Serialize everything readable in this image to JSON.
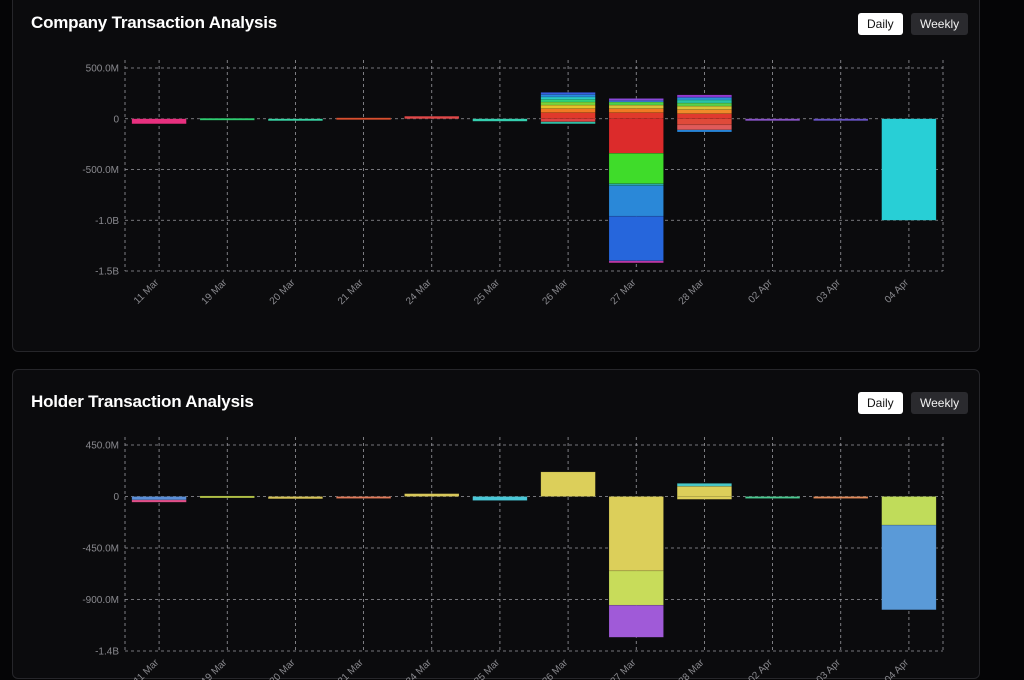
{
  "panels": [
    {
      "title": "Company Transaction Analysis",
      "buttons": {
        "daily": "Daily",
        "weekly": "Weekly",
        "active": "daily"
      }
    },
    {
      "title": "Holder Transaction Analysis",
      "buttons": {
        "daily": "Daily",
        "weekly": "Weekly",
        "active": "daily"
      }
    }
  ],
  "chart_data": [
    {
      "type": "bar",
      "stacked": true,
      "title": "Company Transaction Analysis",
      "categories": [
        "11 Mar",
        "19 Mar",
        "20 Mar",
        "21 Mar",
        "24 Mar",
        "25 Mar",
        "26 Mar",
        "27 Mar",
        "28 Mar",
        "02 Apr",
        "03 Apr",
        "04 Apr"
      ],
      "ylim": [
        -1500000000,
        500000000
      ],
      "yticks": [
        500000000,
        0,
        -500000000,
        -1000000000,
        -1500000000
      ],
      "ytick_labels": [
        "500.0M",
        "0",
        "-500.0M",
        "-1.0B",
        "-1.5B"
      ],
      "grid": true,
      "bars": [
        [
          {
            "v": -50000000,
            "c": "#e8307f"
          }
        ],
        [
          {
            "v": 5000000,
            "c": "#2ecc71"
          }
        ],
        [
          {
            "v": -20000000,
            "c": "#3ad6a6"
          }
        ],
        [
          {
            "v": 10000000,
            "c": "#d9502f"
          }
        ],
        [
          {
            "v": 25000000,
            "c": "#e04848"
          }
        ],
        [
          {
            "v": -25000000,
            "c": "#35d0b0"
          }
        ],
        [
          {
            "v": 60000000,
            "c": "#e0392b"
          },
          {
            "v": 40000000,
            "c": "#f07a22"
          },
          {
            "v": 35000000,
            "c": "#e3c22a"
          },
          {
            "v": 30000000,
            "c": "#7ad33a"
          },
          {
            "v": 25000000,
            "c": "#2fd27a"
          },
          {
            "v": 25000000,
            "c": "#29c8c8"
          },
          {
            "v": 25000000,
            "c": "#2a8de0"
          },
          {
            "v": 20000000,
            "c": "#3a5de0"
          },
          {
            "v": -30000000,
            "c": "#e04040"
          },
          {
            "v": -20000000,
            "c": "#2fc0a8"
          }
        ],
        [
          {
            "v": 60000000,
            "c": "#e0392b"
          },
          {
            "v": 40000000,
            "c": "#f07a22"
          },
          {
            "v": 35000000,
            "c": "#d8c23a"
          },
          {
            "v": 30000000,
            "c": "#4fd04a"
          },
          {
            "v": 20000000,
            "c": "#3a7ad8"
          },
          {
            "v": 15000000,
            "c": "#8a4ad8"
          },
          {
            "v": -340000000,
            "c": "#dc2b2b"
          },
          {
            "v": -300000000,
            "c": "#3fdc2a"
          },
          {
            "v": -20000000,
            "c": "#2aa6a8"
          },
          {
            "v": -300000000,
            "c": "#2a88d8"
          },
          {
            "v": -440000000,
            "c": "#2666dc"
          },
          {
            "v": -15000000,
            "c": "#c03aa8"
          }
        ],
        [
          {
            "v": 50000000,
            "c": "#e03a2e"
          },
          {
            "v": 40000000,
            "c": "#f08a2a"
          },
          {
            "v": 35000000,
            "c": "#d9c33a"
          },
          {
            "v": 30000000,
            "c": "#5ad04a"
          },
          {
            "v": 30000000,
            "c": "#2ac4a8"
          },
          {
            "v": 25000000,
            "c": "#2a9ad8"
          },
          {
            "v": 15000000,
            "c": "#4a5ad8"
          },
          {
            "v": 10000000,
            "c": "#9a3ad8"
          },
          {
            "v": -60000000,
            "c": "#e04a3a"
          },
          {
            "v": -50000000,
            "c": "#e05a5a"
          },
          {
            "v": -20000000,
            "c": "#2a8ae0"
          }
        ],
        [
          {
            "v": -15000000,
            "c": "#8a55c8"
          }
        ],
        [
          {
            "v": -5000000,
            "c": "#6a55c8"
          }
        ],
        [
          {
            "v": -1000000000,
            "c": "#28cfd6"
          }
        ]
      ]
    },
    {
      "type": "bar",
      "stacked": true,
      "title": "Holder Transaction Analysis",
      "categories": [
        "11 Mar",
        "19 Mar",
        "20 Mar",
        "21 Mar",
        "24 Mar",
        "25 Mar",
        "26 Mar",
        "27 Mar",
        "28 Mar",
        "02 Apr",
        "03 Apr",
        "04 Apr"
      ],
      "ylim": [
        -1350000000,
        450000000
      ],
      "yticks": [
        450000000,
        0,
        -450000000,
        -900000000,
        -1350000000
      ],
      "ytick_labels": [
        "450.0M",
        "0",
        "-450.0M",
        "-900.0M",
        "-1.4B"
      ],
      "grid": true,
      "bars": [
        [
          {
            "v": -30000000,
            "c": "#5a8fd8"
          },
          {
            "v": -20000000,
            "c": "#e0508a"
          }
        ],
        [
          {
            "v": 5000000,
            "c": "#b8c84a"
          }
        ],
        [
          {
            "v": -20000000,
            "c": "#d6c45a"
          }
        ],
        [
          {
            "v": -10000000,
            "c": "#e07a5a"
          }
        ],
        [
          {
            "v": 25000000,
            "c": "#d8c85a"
          }
        ],
        [
          {
            "v": -35000000,
            "c": "#4ac8d8"
          }
        ],
        [
          {
            "v": 215000000,
            "c": "#dccf5a"
          }
        ],
        [
          {
            "v": -650000000,
            "c": "#dccf5a"
          },
          {
            "v": -300000000,
            "c": "#c8dc5a"
          },
          {
            "v": -280000000,
            "c": "#a05ad8"
          }
        ],
        [
          {
            "v": 90000000,
            "c": "#dccf5a"
          },
          {
            "v": 25000000,
            "c": "#4ac8c8"
          },
          {
            "v": -25000000,
            "c": "#dccf5a"
          }
        ],
        [
          {
            "v": -15000000,
            "c": "#4ac890"
          }
        ],
        [
          {
            "v": -5000000,
            "c": "#e08a5a"
          }
        ],
        [
          {
            "v": -250000000,
            "c": "#c0dc5a"
          },
          {
            "v": -740000000,
            "c": "#5a9ad8"
          }
        ]
      ]
    }
  ]
}
